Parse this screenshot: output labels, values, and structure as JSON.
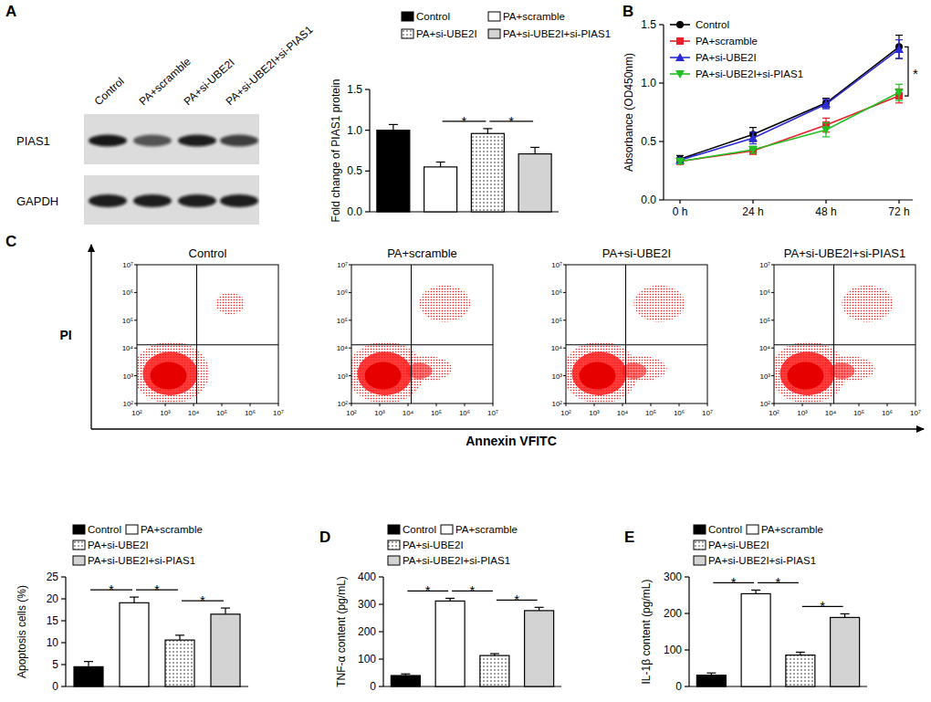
{
  "panel_labels": [
    "A",
    "B",
    "C",
    "D",
    "E"
  ],
  "blot": {
    "lanes": [
      "Control",
      "PA+scramble",
      "PA+si-UBE2I",
      "PA+si-UBE2I+si-PIAS1"
    ],
    "proteins": [
      "PIAS1",
      "GAPDH"
    ]
  },
  "flow": {
    "titles": [
      "Control",
      "PA+scramble",
      "PA+si-UBE2I",
      "PA+si-UBE2I+si-PIAS1"
    ],
    "x_label": "Annexin VFITC",
    "y_label": "PI",
    "log": true,
    "xlim": [
      100,
      10000000
    ],
    "ylim": [
      100,
      10000000
    ],
    "xticks": [
      {
        "value": 100,
        "label": "10²"
      },
      {
        "value": 1000,
        "label": "10³"
      },
      {
        "value": 10000,
        "label": "10⁴"
      },
      {
        "value": 100000,
        "label": "10⁵"
      },
      {
        "value": 1000000,
        "label": "10⁶"
      },
      {
        "value": 10000000,
        "label": "10⁷"
      }
    ],
    "yticks": [
      {
        "value": 100,
        "label": "10²"
      },
      {
        "value": 1000,
        "label": "10³"
      },
      {
        "value": 10000,
        "label": "10⁴"
      },
      {
        "value": 100000,
        "label": "10⁵"
      },
      {
        "value": 1000000,
        "label": "10⁶"
      },
      {
        "value": 10000000,
        "label": "10⁷"
      }
    ],
    "gate": [
      13000,
      13000
    ]
  },
  "chart_data": [
    {
      "type": "bar",
      "y_label": "Fold change of PIAS1 protein",
      "categories": [
        null
      ],
      "series": [
        {
          "name": "Control",
          "color": "#000000",
          "values": [
            1.0
          ],
          "errors": [
            0.07
          ]
        },
        {
          "name": "PA+scramble",
          "color": "#ffffff",
          "values": [
            0.55
          ],
          "errors": [
            0.06
          ]
        },
        {
          "name": "PA+si-UBE2I",
          "color": "#ffffff",
          "values": [
            0.96
          ],
          "errors": [
            0.06
          ]
        },
        {
          "name": "PA+si-UBE2I+si-PIAS1",
          "color": "#d3d3d3",
          "values": [
            0.71
          ],
          "errors": [
            0.08
          ]
        }
      ],
      "ylim": [
        0,
        1.5
      ],
      "yticks": [
        {
          "value": 0,
          "label": "0.0"
        },
        0.5,
        {
          "value": 1,
          "label": "1.0"
        },
        1.5
      ],
      "legend": "top",
      "significance": [
        {
          "pair": [
            1,
            2
          ],
          "label": "*"
        },
        {
          "pair": [
            2,
            3
          ],
          "label": "*"
        }
      ]
    },
    {
      "type": "line",
      "y_label": "Absorbance (OD450nm)",
      "categories": [
        "0 h",
        "24 h",
        "48 h",
        "72 h"
      ],
      "series": [
        {
          "name": "Control",
          "color": "#000000",
          "marker": "circle",
          "values": [
            0.35,
            0.56,
            0.83,
            1.31
          ],
          "errors": [
            0.03,
            0.06,
            0.04,
            0.1
          ]
        },
        {
          "name": "PA+scramble",
          "color": "#e8202a",
          "marker": "square",
          "values": [
            0.33,
            0.42,
            0.64,
            0.89
          ],
          "errors": [
            0.02,
            0.03,
            0.06,
            0.06
          ]
        },
        {
          "name": "PA+si-UBE2I",
          "color": "#2b2bd6",
          "marker": "triangle",
          "values": [
            0.34,
            0.53,
            0.82,
            1.29
          ],
          "errors": [
            0.02,
            0.05,
            0.04,
            0.08
          ]
        },
        {
          "name": "PA+si-UBE2I+si-PIAS1",
          "color": "#22c022",
          "marker": "triangle-down",
          "values": [
            0.33,
            0.43,
            0.6,
            0.92
          ],
          "errors": [
            0.02,
            0.03,
            0.06,
            0.07
          ]
        }
      ],
      "ylim": [
        0,
        1.5
      ],
      "yticks": [
        {
          "value": 0,
          "label": "0.0"
        },
        0.5,
        {
          "value": 1,
          "label": "1.0"
        },
        1.5
      ],
      "legend": "top-left",
      "significance": [
        {
          "category": 3,
          "series": [
            0,
            1
          ],
          "label": "*"
        }
      ]
    },
    {
      "type": "bar",
      "y_label": "Apoptosis cells (%)",
      "categories": [
        null
      ],
      "series": [
        {
          "name": "Control",
          "color": "#000000",
          "values": [
            4.5
          ],
          "errors": [
            1.2
          ]
        },
        {
          "name": "PA+scramble",
          "color": "#ffffff",
          "values": [
            19.1
          ],
          "errors": [
            1.3
          ]
        },
        {
          "name": "PA+si-UBE2I",
          "color": "#ffffff",
          "values": [
            10.6
          ],
          "errors": [
            1.1
          ]
        },
        {
          "name": "PA+si-UBE2I+si-PIAS1",
          "color": "#d3d3d3",
          "values": [
            16.5
          ],
          "errors": [
            1.4
          ]
        }
      ],
      "ylim": [
        0,
        25
      ],
      "yticks": [
        0,
        5,
        10,
        15,
        20,
        25
      ],
      "legend": "top",
      "significance": [
        {
          "pair": [
            0,
            1
          ],
          "label": "*"
        },
        {
          "pair": [
            1,
            2
          ],
          "label": "*"
        },
        {
          "pair": [
            2,
            3
          ],
          "label": "*"
        }
      ]
    },
    {
      "type": "bar",
      "y_label": "TNF-α content (pg/mL)",
      "categories": [
        null
      ],
      "series": [
        {
          "name": "Control",
          "color": "#000000",
          "values": [
            40
          ],
          "errors": [
            6
          ]
        },
        {
          "name": "PA+scramble",
          "color": "#ffffff",
          "values": [
            312
          ],
          "errors": [
            10
          ]
        },
        {
          "name": "PA+si-UBE2I",
          "color": "#ffffff",
          "values": [
            113
          ],
          "errors": [
            7
          ]
        },
        {
          "name": "PA+si-UBE2I+si-PIAS1",
          "color": "#d3d3d3",
          "values": [
            277
          ],
          "errors": [
            12
          ]
        }
      ],
      "ylim": [
        0,
        400
      ],
      "yticks": [
        0,
        100,
        200,
        300,
        400
      ],
      "legend": "top",
      "significance": [
        {
          "pair": [
            0,
            1
          ],
          "label": "*"
        },
        {
          "pair": [
            1,
            2
          ],
          "label": "*"
        },
        {
          "pair": [
            2,
            3
          ],
          "label": "*"
        }
      ]
    },
    {
      "type": "bar",
      "y_label": "IL-1β content (pg/mL)",
      "categories": [
        null
      ],
      "series": [
        {
          "name": "Control",
          "color": "#000000",
          "values": [
            31
          ],
          "errors": [
            6
          ]
        },
        {
          "name": "PA+scramble",
          "color": "#ffffff",
          "values": [
            254
          ],
          "errors": [
            10
          ]
        },
        {
          "name": "PA+si-UBE2I",
          "color": "#ffffff",
          "values": [
            86
          ],
          "errors": [
            8
          ]
        },
        {
          "name": "PA+si-UBE2I+si-PIAS1",
          "color": "#d3d3d3",
          "values": [
            189
          ],
          "errors": [
            10
          ]
        }
      ],
      "ylim": [
        0,
        300
      ],
      "yticks": [
        0,
        100,
        200,
        300
      ],
      "legend": "top",
      "significance": [
        {
          "pair": [
            0,
            1
          ],
          "label": "*"
        },
        {
          "pair": [
            1,
            2
          ],
          "label": "*"
        },
        {
          "pair": [
            2,
            3
          ],
          "label": "*"
        }
      ]
    }
  ]
}
